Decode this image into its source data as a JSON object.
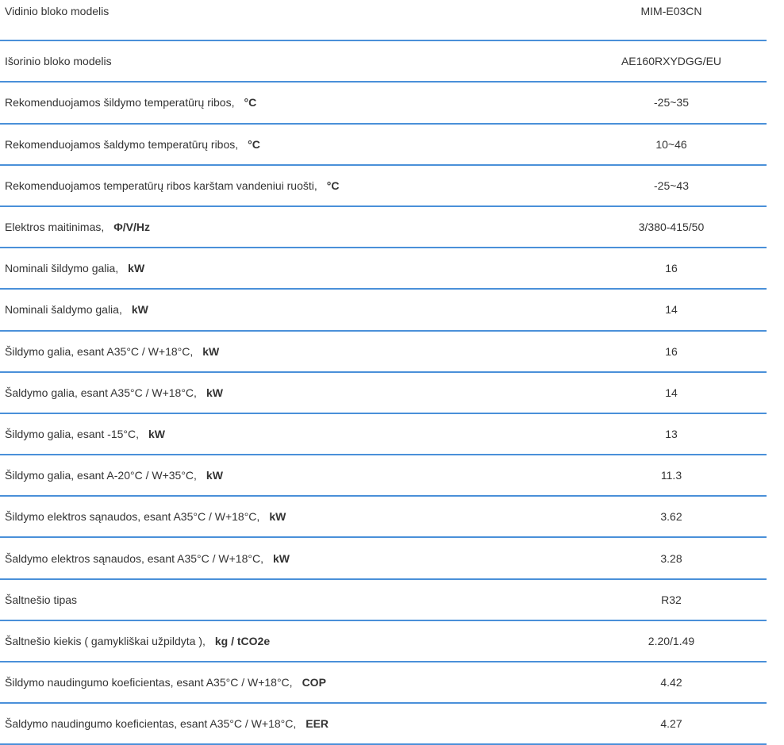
{
  "specs": [
    {
      "label": "Vidinio bloko modelis",
      "unit": "",
      "value": "MIM-E03CN"
    },
    {
      "label": "Išorinio bloko modelis",
      "unit": "",
      "value": "AE160RXYDGG/EU"
    },
    {
      "label": "Rekomenduojamos šildymo temperatūrų ribos,",
      "unit": "°C",
      "value": "-25~35"
    },
    {
      "label": "Rekomenduojamos šaldymo temperatūrų ribos,",
      "unit": "°C",
      "value": "10~46"
    },
    {
      "label": "Rekomenduojamos temperatūrų ribos karštam vandeniui ruošti,",
      "unit": "°C",
      "value": "-25~43"
    },
    {
      "label": "Elektros maitinimas,",
      "unit": "Φ/V/Hz",
      "value": "3/380-415/50"
    },
    {
      "label": "Nominali šildymo galia,",
      "unit": "kW",
      "value": "16"
    },
    {
      "label": "Nominali šaldymo galia,",
      "unit": "kW",
      "value": "14"
    },
    {
      "label": "Šildymo galia, esant A35°C / W+18°C,",
      "unit": "kW",
      "value": "16"
    },
    {
      "label": "Šaldymo galia, esant A35°C / W+18°C,",
      "unit": "kW",
      "value": "14"
    },
    {
      "label": "Šildymo galia, esant -15°C,",
      "unit": "kW",
      "value": "13"
    },
    {
      "label": "Šildymo galia, esant A-20°C / W+35°C,",
      "unit": "kW",
      "value": "11.3"
    },
    {
      "label": "Šildymo elektros sąnaudos, esant A35°C / W+18°C,",
      "unit": "kW",
      "value": "3.62"
    },
    {
      "label": "Šaldymo elektros sąnaudos, esant A35°C / W+18°C,",
      "unit": "kW",
      "value": "3.28"
    },
    {
      "label": "Šaltnešio tipas",
      "unit": "",
      "value": "R32"
    },
    {
      "label": "Šaltnešio kiekis ( gamykliškai užpildyta ),",
      "unit": "kg / tCO2e",
      "value": "2.20/1.49"
    },
    {
      "label": "Šildymo naudingumo koeficientas, esant A35°C / W+18°C,",
      "unit": "COP",
      "value": "4.42"
    },
    {
      "label": "Šaldymo naudingumo koeficientas, esant A35°C / W+18°C,",
      "unit": "EER",
      "value": "4.27"
    }
  ],
  "colors": {
    "divider": "#4a90d9",
    "text": "#333333"
  }
}
